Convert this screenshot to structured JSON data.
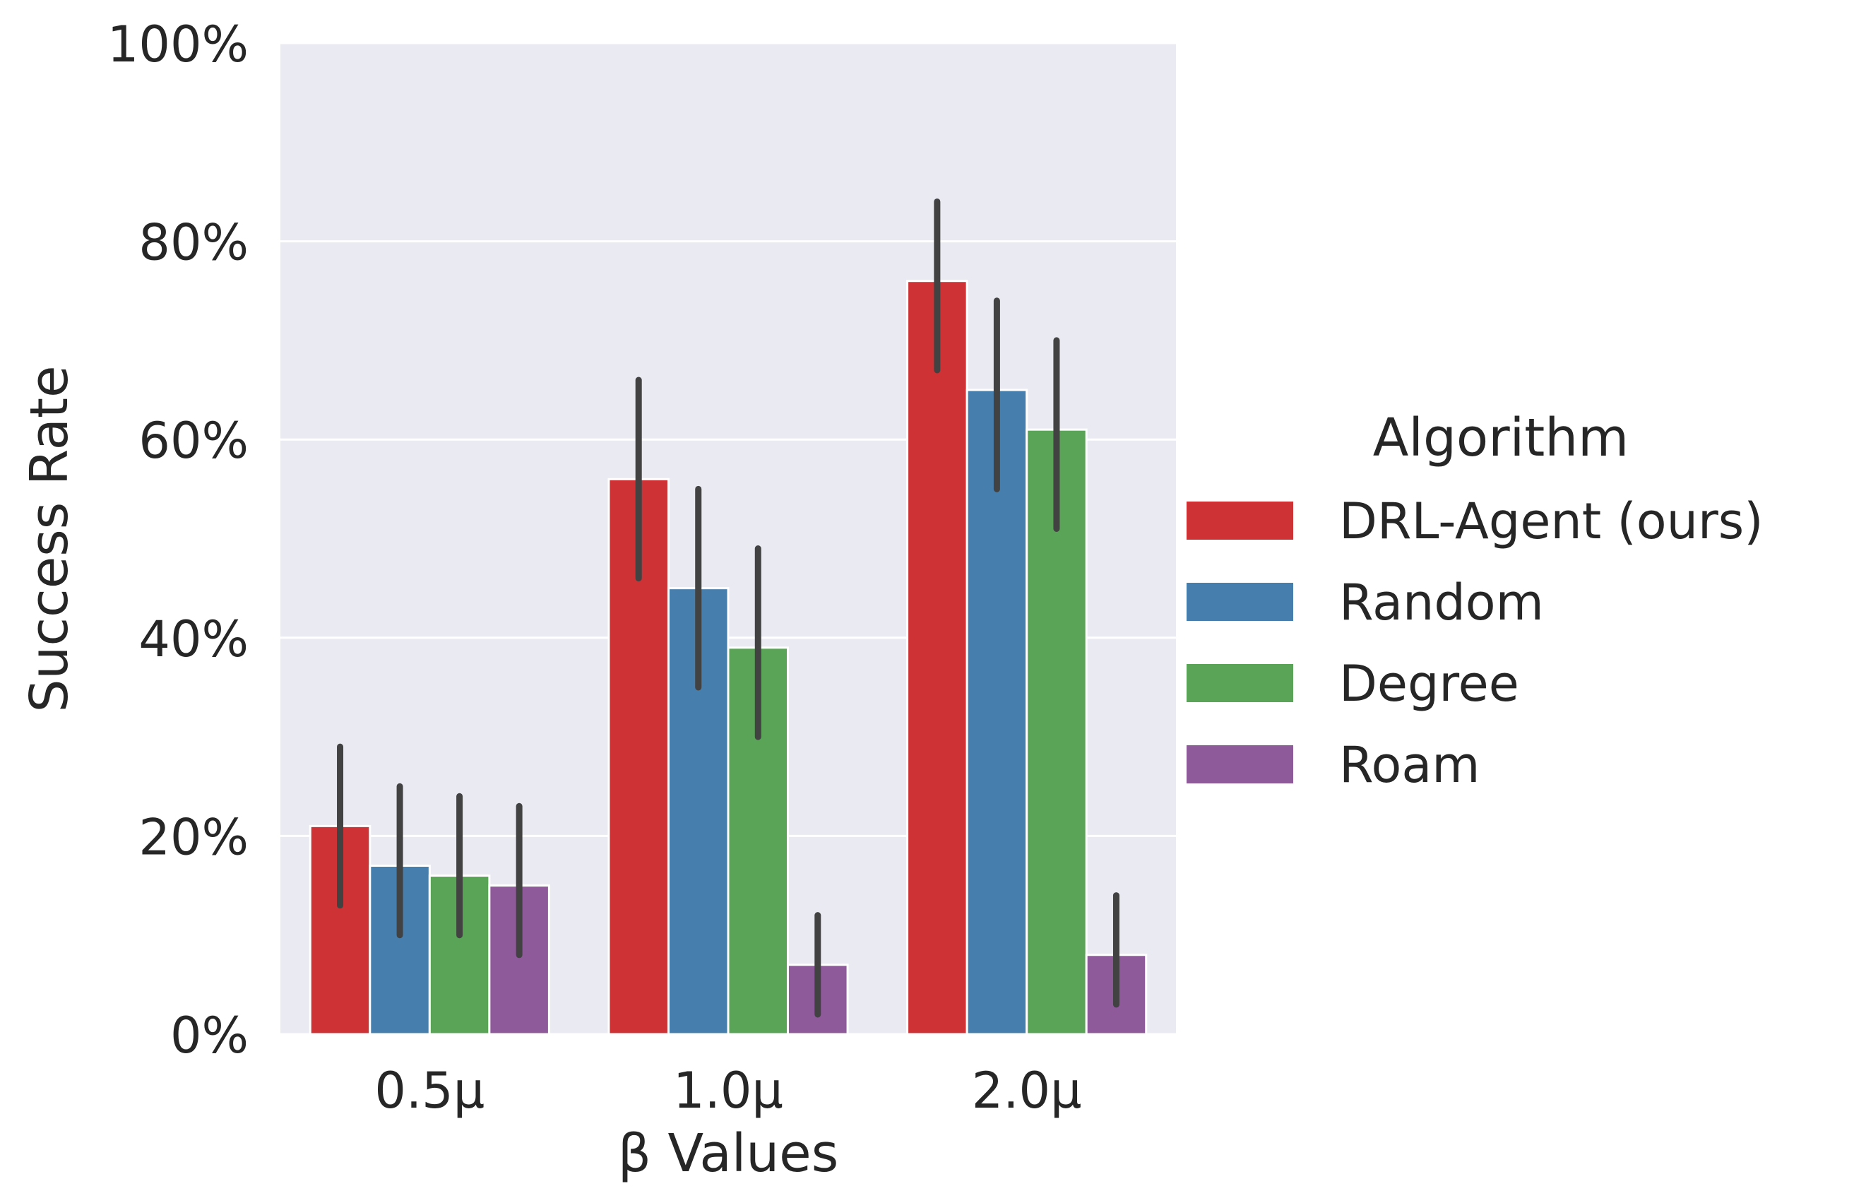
{
  "chart_data": {
    "type": "bar",
    "xlabel": "β Values",
    "ylabel": "Success Rate",
    "categories": [
      "0.5μ",
      "1.0μ",
      "2.0μ"
    ],
    "ylim": [
      0,
      1
    ],
    "yticks": [
      0,
      0.2,
      0.4,
      0.6,
      0.8,
      1.0
    ],
    "ytick_labels": [
      "0%",
      "20%",
      "40%",
      "60%",
      "80%",
      "100%"
    ],
    "grid": true,
    "legend_title": "Algorithm",
    "legend_position": "right",
    "series": [
      {
        "name": "DRL-Agent (ours)",
        "color": "#CE3234",
        "values": [
          0.21,
          0.56,
          0.76
        ],
        "ci_low": [
          0.13,
          0.46,
          0.67
        ],
        "ci_high": [
          0.29,
          0.66,
          0.84
        ]
      },
      {
        "name": "Random",
        "color": "#467EAE",
        "values": [
          0.17,
          0.45,
          0.65
        ],
        "ci_low": [
          0.1,
          0.35,
          0.55
        ],
        "ci_high": [
          0.25,
          0.55,
          0.74
        ]
      },
      {
        "name": "Degree",
        "color": "#5AA457",
        "values": [
          0.16,
          0.39,
          0.61
        ],
        "ci_low": [
          0.1,
          0.3,
          0.51
        ],
        "ci_high": [
          0.24,
          0.49,
          0.7
        ]
      },
      {
        "name": "Roam",
        "color": "#8F5A9A",
        "values": [
          0.15,
          0.07,
          0.08
        ],
        "ci_low": [
          0.08,
          0.02,
          0.03
        ],
        "ci_high": [
          0.23,
          0.12,
          0.14
        ]
      }
    ],
    "colors": {
      "plot_background": "#EAEAF2",
      "grid": "#FFFFFF",
      "error_bar": "#424242",
      "text": "#262626"
    }
  }
}
